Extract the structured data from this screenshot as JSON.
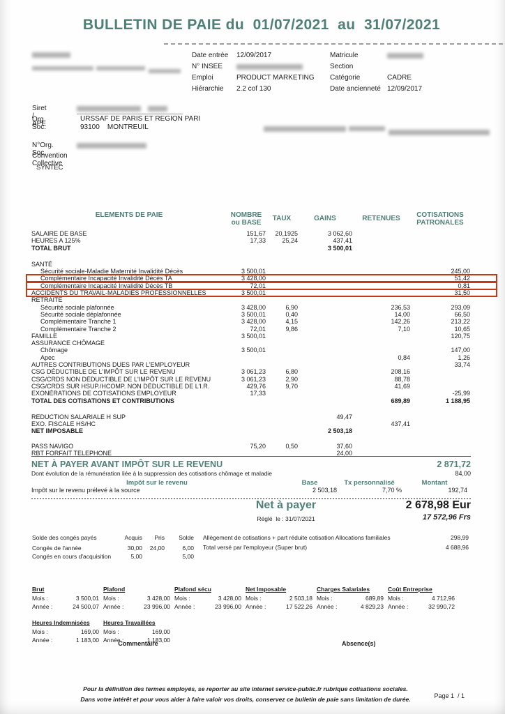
{
  "page": {
    "title": "BULLETIN DE PAIE du  01/07/2021  au  31/07/2021",
    "page_label": "Page 1  / 1"
  },
  "info_panel": {
    "rows": [
      {
        "l_label": "Date entrée",
        "l_value": "12/09/2017",
        "l_redacted": false,
        "r_label": "Matricule",
        "r_value": "",
        "r_redacted": true
      },
      {
        "l_label": "N° INSEE",
        "l_value": "",
        "l_redacted": true,
        "r_label": "Section",
        "r_value": "",
        "r_redacted": false
      },
      {
        "l_label": "Emploi",
        "l_value": "PRODUCT MARKETING",
        "l_redacted": false,
        "r_label": "Catégorie",
        "r_value": "CADRE",
        "r_redacted": false
      },
      {
        "l_label": "Hiérarchie",
        "l_value": "2.2 cof 130",
        "l_redacted": false,
        "r_label": "Date ancienneté",
        "r_value": "12/09/2017",
        "r_redacted": false
      }
    ]
  },
  "employer": {
    "siret_label": "Siret / APE",
    "org_soc_label": "Org. Soc.",
    "org_soc_line1": "URSSAF DE PARIS ET REGION PARI",
    "org_soc_line2": "93100    MONTREUIL",
    "n_org_soc_label": "N°Org. Soc.",
    "convention_label": "Convention Collective",
    "convention_value": "SYNTEC"
  },
  "table": {
    "headers": {
      "elements": "ELEMENTS DE PAIE",
      "nombre1": "NOMBRE",
      "nombre2": "ou BASE",
      "taux": "TAUX",
      "gains": "GAINS",
      "retenues": "RETENUES",
      "cotis1": "COTISATIONS",
      "cotis2": "PATRONALES"
    },
    "rows": [
      {
        "label": "SALAIRE DE BASE",
        "base": "151,67",
        "taux": "20,1925",
        "gains": "3 062,60"
      },
      {
        "label": "HEURES A 125%",
        "base": "17,33",
        "taux": "25,24",
        "gains": "437,41"
      },
      {
        "label": "TOTAL BRUT",
        "gains": "3 500,01",
        "bold": true
      },
      {
        "spacer": "lg"
      },
      {
        "label": "SANTÉ"
      },
      {
        "label": "Sécurité sociale-Maladie Maternité Invalidité Décès",
        "indent": true,
        "base": "3 500,01",
        "patronales": "245,00"
      },
      {
        "label": "Complémentaire Incapacité Invalidité Décès TA",
        "indent": true,
        "base": "3 428,00",
        "patronales": "51,42",
        "red": true
      },
      {
        "label": "Complémentaire Incapacité Invalidité Décès TB",
        "indent": true,
        "base": "72,01",
        "patronales": "0,81",
        "red": true
      },
      {
        "label": "ACCIDENTS DU TRAVAIL-MALADIES PROFESSIONNELLES",
        "base": "3 500,01",
        "patronales": "31,50",
        "red": true
      },
      {
        "label": "RETRAITE"
      },
      {
        "label": "Sécurité sociale plafonnée",
        "indent": true,
        "base": "3 428,00",
        "taux": "6,90",
        "retenues": "236,53",
        "patronales": "293,09"
      },
      {
        "label": "Sécurité sociale déplafonnée",
        "indent": true,
        "base": "3 500,01",
        "taux": "0,40",
        "retenues": "14,00",
        "patronales": "66,50"
      },
      {
        "label": "Complémentaire Tranche 1",
        "indent": true,
        "base": "3 428,00",
        "taux": "4,15",
        "retenues": "142,26",
        "patronales": "213,22"
      },
      {
        "label": "Complémentaire Tranche 2",
        "indent": true,
        "base": "72,01",
        "taux": "9,86",
        "retenues": "7,10",
        "patronales": "10,65"
      },
      {
        "label": "FAMILLE",
        "base": "3 500,01",
        "patronales": "120,75"
      },
      {
        "label": "ASSURANCE CHÔMAGE"
      },
      {
        "label": "Chômage",
        "indent": true,
        "base": "3 500,01",
        "patronales": "147,00"
      },
      {
        "label": "Apec",
        "indent": true,
        "retenues": "0,84",
        "patronales": "1,26"
      },
      {
        "label": "AUTRES CONTRIBUTIONS DUES PAR L'EMPLOYEUR",
        "patronales": "33,74"
      },
      {
        "label": "CSG DÉDUCTIBLE DE L'IMPÔT SUR LE REVENU",
        "base": "3 061,23",
        "taux": "6,80",
        "retenues": "208,16"
      },
      {
        "label": "CSG/CRDS NON DÉDUCTIBLE DE L'IMPÔT SUR LE REVENU",
        "base": "3 061,23",
        "taux": "2,90",
        "retenues": "88,78"
      },
      {
        "label": "CSG/CRDS SUR HSUP./HCOMP. NON DÉDUCTIBLE DE L'I.R.",
        "base": "429,76",
        "taux": "9,70",
        "retenues": "41,69"
      },
      {
        "label": "EXONÉRATIONS DE COTISATIONS EMPLOYEUR",
        "base": "17,33",
        "patronales": "-25,99"
      },
      {
        "label": "TOTAL DES COTISATIONS ET CONTRIBUTIONS",
        "retenues": "689,89",
        "patronales": "1 188,95",
        "bold": true
      },
      {
        "spacer": "lg"
      },
      {
        "label": "REDUCTION SALARIALE H SUP",
        "gains": "49,47"
      },
      {
        "label": "EXO. FISCALE HS/HC",
        "retenues": "437,41"
      },
      {
        "label": "NET IMPOSABLE",
        "gains": "2 503,18",
        "bold": true
      },
      {
        "spacer": "md"
      },
      {
        "label": "PASS NAVIGO",
        "base": "75,20",
        "taux": "0,50",
        "gains": "37,60"
      },
      {
        "label": "RBT FORFAIT TELEPHONE",
        "gains": "24,00"
      }
    ]
  },
  "net_before": {
    "title": "NET À PAYER AVANT IMPÔT SUR LE REVENU",
    "amount": "2 871,72",
    "note": "Dont évolution de la rémunération liée à la suppression des cotisations chômage et maladie",
    "note_amount": "84,00",
    "tax_header": {
      "label": "Impôt sur le revenu",
      "base": "Base",
      "tx": "Tx personnalisé",
      "montant": "Montant"
    },
    "tax_row": {
      "label": "Impôt sur le revenu prélevé à la source",
      "base": "2 503,18",
      "tx": "7,70 %",
      "montant": "192,74"
    }
  },
  "net_pay": {
    "label": "Net à payer",
    "amount": "2 678,98 Eur",
    "paid_label": "Réglé  le : 31/07/2021",
    "francs": "17 572,96 Frs"
  },
  "conges": {
    "title": "Solde des congés payés",
    "headers": [
      "Acquis",
      "Pris",
      "Solde"
    ],
    "rows": [
      {
        "label": "Congés de l'année",
        "acquis": "30,00",
        "pris": "24,00",
        "solde": "6,00"
      },
      {
        "label": "Congés en cours d'acquisition",
        "acquis": "5,00",
        "pris": "",
        "solde": "5,00"
      }
    ]
  },
  "employer_totals": {
    "rows": [
      {
        "label": "Allègement de cotisations + part réduite cotisation Allocations familiales",
        "value": "298,99"
      },
      {
        "label": "Total versé par l'employeur (Super brut)",
        "value": "4 688,96"
      }
    ]
  },
  "summary": {
    "mois_label": "Mois :",
    "annee_label": "Année :",
    "groups": [
      {
        "title": "Brut",
        "mois": "3 500,01",
        "annee": "24 500,07"
      },
      {
        "title": "Plafond",
        "mois": "3 428,00",
        "annee": "23 996,00"
      },
      {
        "title": "Plafond sécu",
        "mois": "3 428,00",
        "annee": "23 996,00"
      },
      {
        "title": "Net Imposable",
        "mois": "2 503,18",
        "annee": "17 522,26"
      },
      {
        "title": "Charges Salariales",
        "mois": "689,89",
        "annee": "4 829,23"
      },
      {
        "title": "Coût Entreprise",
        "mois": "4 712,96",
        "annee": "32 990,72"
      }
    ],
    "hours": [
      {
        "title": "Heures Indemnisées",
        "mois": "169,00",
        "annee": "1 183,00"
      },
      {
        "title": "Heures Travaillées",
        "mois": "169,00",
        "annee": "1 183,00"
      }
    ],
    "commentaire": "Commentaire",
    "absences": "Absence(s)"
  },
  "footer": {
    "line1": "Pour la définition des termes employés, se reporter au site internet service-public.fr rubrique cotisations sociales.",
    "line2": "Dans votre intérêt et pour vous aider à faire valoir vos droits, conservez ce bulletin de paie sans limitation de durée."
  }
}
